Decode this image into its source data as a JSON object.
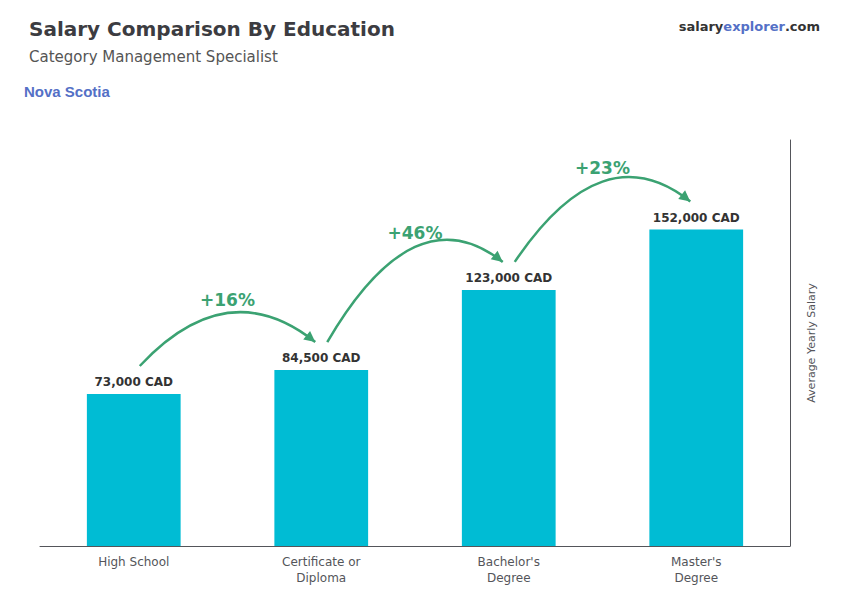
{
  "chart_data": {
    "type": "bar",
    "title": "Salary Comparison By Education",
    "subtitle": "Category Management Specialist",
    "y_label": "Average Yearly Salary",
    "categories": [
      "High School",
      "Certificate or\nDiploma",
      "Bachelor's\nDegree",
      "Master's\nDegree"
    ],
    "values": [
      73000,
      84500,
      123000,
      152000
    ],
    "value_labels": [
      "73,000 CAD",
      "84,500 CAD",
      "123,000 CAD",
      "152,000 CAD"
    ],
    "data_labels": true,
    "color": "#00bcd4",
    "ylim": [
      0,
      195000
    ],
    "grid": false,
    "tick_labels": "x",
    "annotations": {
      "location": "Nova Scotia",
      "website": [
        "salary",
        "explorer",
        ".com"
      ],
      "growth": [
        "+16%",
        "+46%",
        "+23%"
      ]
    }
  }
}
